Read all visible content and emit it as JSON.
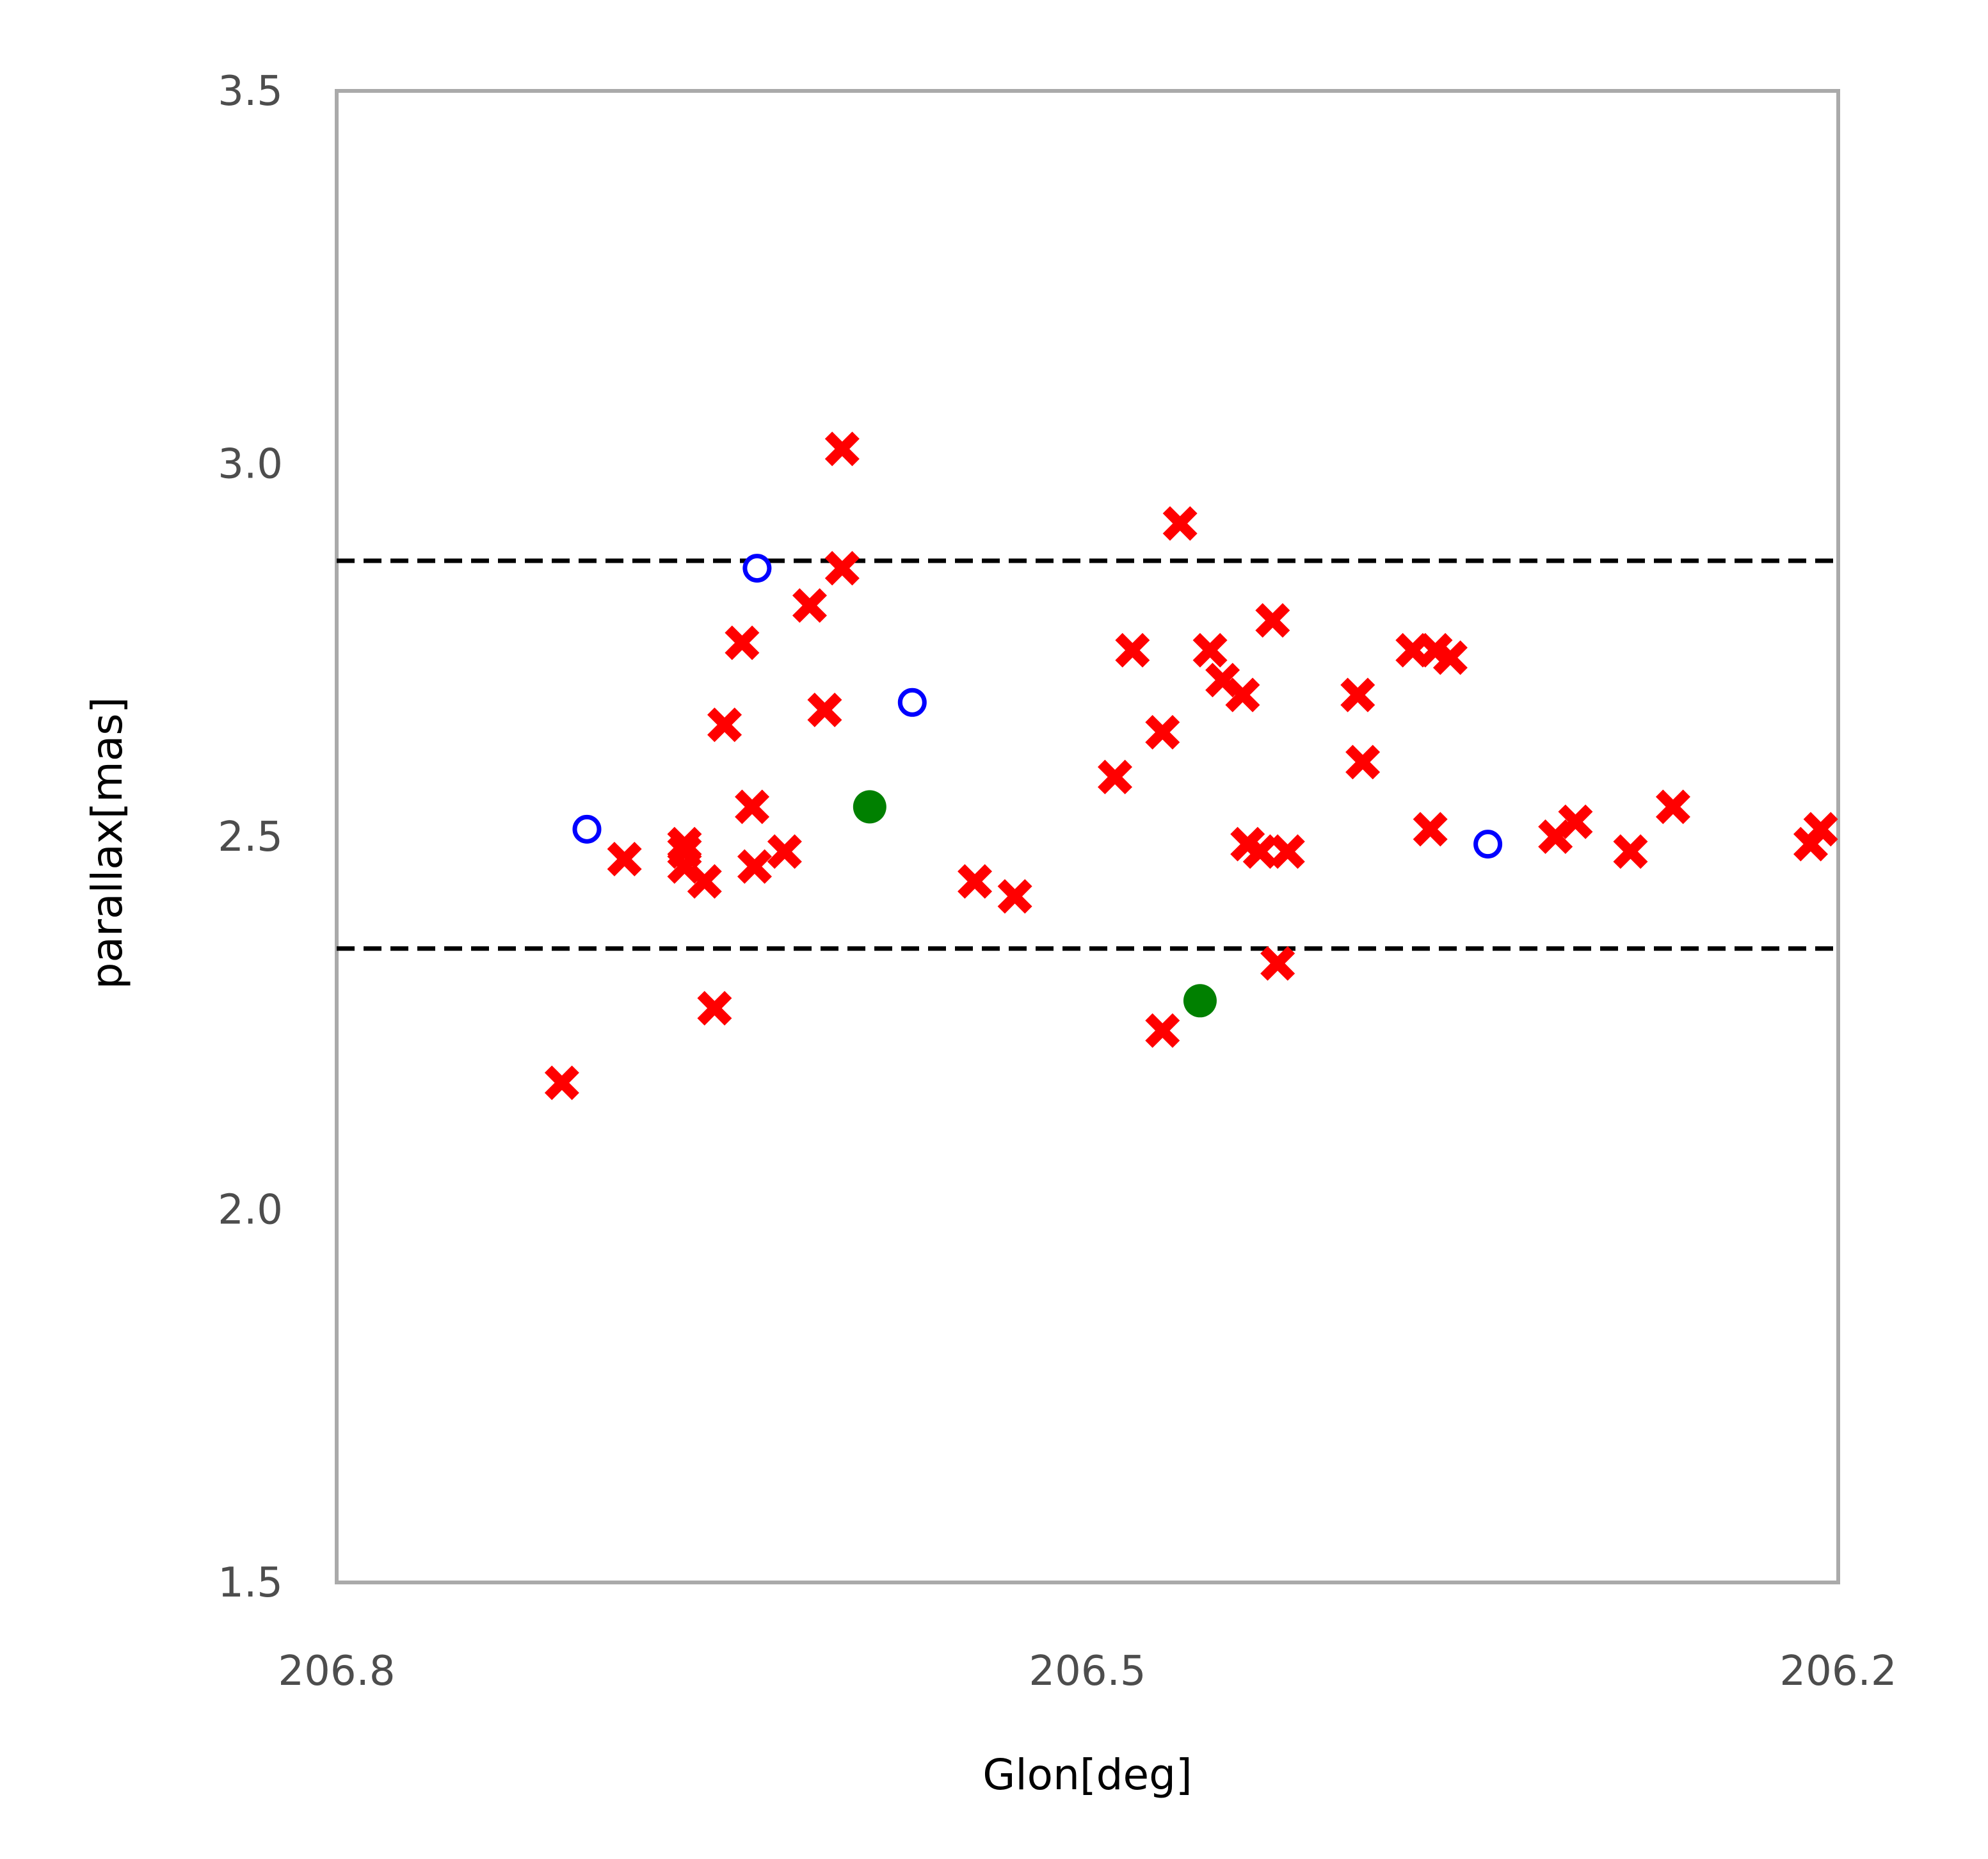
{
  "chart_data": {
    "type": "scatter",
    "xlabel": "Glon[deg]",
    "ylabel": "parallax[mas]",
    "xlim": [
      206.8,
      206.2
    ],
    "ylim": [
      1.5,
      3.5
    ],
    "x_inverted": true,
    "xticks": [
      "206.8",
      "206.5",
      "206.2"
    ],
    "yticks": [
      "1.5",
      "2.0",
      "2.5",
      "3.0",
      "3.5"
    ],
    "grid": false,
    "hlines": [
      {
        "y": 2.87,
        "style": "dashed",
        "color": "#000000"
      },
      {
        "y": 2.35,
        "style": "dashed",
        "color": "#000000"
      }
    ],
    "series": [
      {
        "marker": "x-filled",
        "color": "#ff0000",
        "points": [
          [
            206.71,
            2.17
          ],
          [
            206.685,
            2.47
          ],
          [
            206.661,
            2.48
          ],
          [
            206.661,
            2.49
          ],
          [
            206.661,
            2.46
          ],
          [
            206.653,
            2.44
          ],
          [
            206.649,
            2.27
          ],
          [
            206.645,
            2.65
          ],
          [
            206.638,
            2.76
          ],
          [
            206.634,
            2.54
          ],
          [
            206.633,
            2.46
          ],
          [
            206.621,
            2.48
          ],
          [
            206.611,
            2.81
          ],
          [
            206.605,
            2.67
          ],
          [
            206.598,
            2.86
          ],
          [
            206.598,
            3.02
          ],
          [
            206.545,
            2.44
          ],
          [
            206.529,
            2.42
          ],
          [
            206.489,
            2.58
          ],
          [
            206.482,
            2.75
          ],
          [
            206.47,
            2.64
          ],
          [
            206.47,
            2.24
          ],
          [
            206.463,
            2.92
          ],
          [
            206.451,
            2.75
          ],
          [
            206.446,
            2.71
          ],
          [
            206.438,
            2.69
          ],
          [
            206.436,
            2.49
          ],
          [
            206.431,
            2.48
          ],
          [
            206.426,
            2.79
          ],
          [
            206.424,
            2.33
          ],
          [
            206.42,
            2.48
          ],
          [
            206.392,
            2.69
          ],
          [
            206.39,
            2.6
          ],
          [
            206.37,
            2.75
          ],
          [
            206.363,
            2.51
          ],
          [
            206.361,
            2.75
          ],
          [
            206.355,
            2.74
          ],
          [
            206.313,
            2.5
          ],
          [
            206.305,
            2.52
          ],
          [
            206.283,
            2.48
          ],
          [
            206.266,
            2.54
          ],
          [
            206.211,
            2.49
          ],
          [
            206.207,
            2.51
          ]
        ]
      },
      {
        "marker": "o-open",
        "color": "#0000ff",
        "points": [
          [
            206.7,
            2.51
          ],
          [
            206.632,
            2.86
          ],
          [
            206.57,
            2.68
          ],
          [
            206.34,
            2.49
          ]
        ]
      },
      {
        "marker": "o-filled",
        "color": "#008000",
        "points": [
          [
            206.587,
            2.54
          ],
          [
            206.455,
            2.28
          ]
        ]
      }
    ]
  }
}
